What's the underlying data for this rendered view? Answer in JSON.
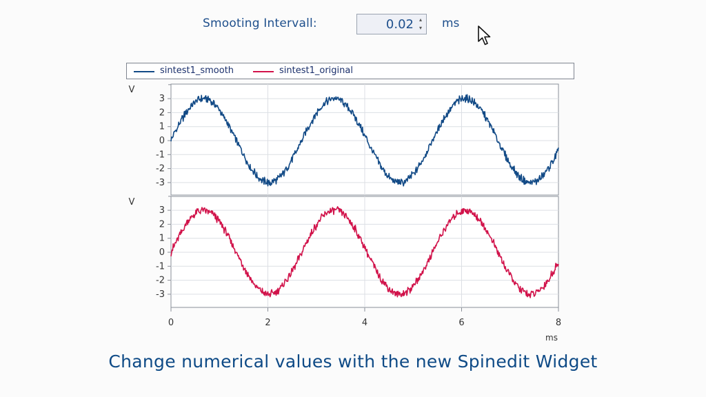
{
  "spinedit": {
    "label": "Smooting Intervall:",
    "value": "0.02",
    "unit": "ms",
    "up_glyph": "▴",
    "down_glyph": "▾"
  },
  "legend": {
    "items": [
      {
        "label": "sintest1_smooth",
        "color": "#124a86"
      },
      {
        "label": "sintest1_original",
        "color": "#d1124a"
      }
    ]
  },
  "caption": "Change numerical values with the new Spinedit Widget",
  "chart_data": [
    {
      "type": "line",
      "series": [
        {
          "name": "sintest1_smooth",
          "color": "#124a86"
        }
      ],
      "x_range": [
        0,
        8
      ],
      "ylim": [
        -4,
        4
      ],
      "y_ticks": [
        "3",
        "2",
        "1",
        "0",
        "-1",
        "-2",
        "-3"
      ],
      "ylabel": "V",
      "period_ms": 2.7,
      "amplitude": 3,
      "grid": true
    },
    {
      "type": "line",
      "series": [
        {
          "name": "sintest1_original",
          "color": "#d1124a"
        }
      ],
      "x_range": [
        0,
        8
      ],
      "ylim": [
        -4,
        4
      ],
      "y_ticks": [
        "3",
        "2",
        "1",
        "0",
        "-1",
        "-2",
        "-3"
      ],
      "ylabel": "V",
      "x_ticks": [
        "0",
        "2",
        "4",
        "6",
        "8"
      ],
      "xlabel": "ms",
      "period_ms": 2.7,
      "amplitude": 3,
      "grid": true
    }
  ]
}
